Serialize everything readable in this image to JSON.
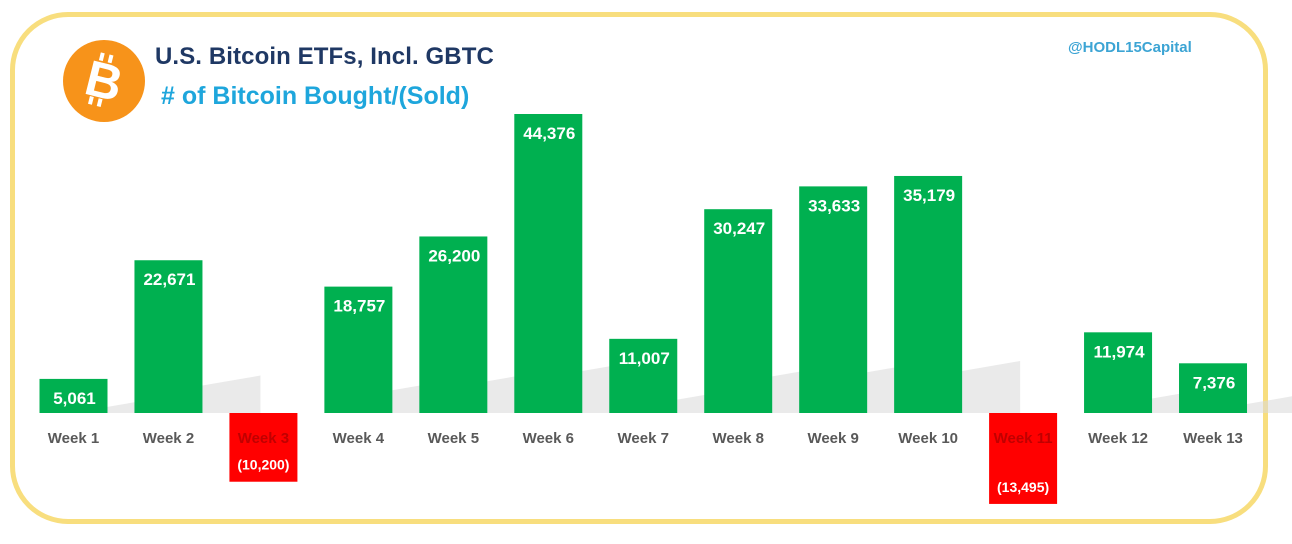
{
  "header": {
    "title": "U.S. Bitcoin ETFs, Incl. GBTC",
    "subtitle": "# of Bitcoin Bought/(Sold)",
    "handle": "@HODL15Capital"
  },
  "logo": {
    "icon": "bitcoin-logo-icon",
    "glyph": "B",
    "color": "#f7931a"
  },
  "colors": {
    "positive": "#00b050",
    "negative": "#ff0000",
    "frame": "#f8de7e",
    "title": "#1f3864",
    "subtitle": "#1ea6dc",
    "axis_label": "#595959"
  },
  "chart_data": {
    "type": "bar",
    "title": "U.S. Bitcoin ETFs, Incl. GBTC",
    "subtitle": "# of Bitcoin Bought/(Sold)",
    "categories": [
      "Week 1",
      "Week 2",
      "Week 3",
      "Week 4",
      "Week 5",
      "Week 6",
      "Week 7",
      "Week 8",
      "Week 9",
      "Week 10",
      "Week 11",
      "Week 12",
      "Week 13"
    ],
    "values": [
      5061,
      22671,
      -10200,
      18757,
      26200,
      44376,
      11007,
      30247,
      33633,
      35179,
      -13495,
      11974,
      7376
    ],
    "labels": [
      "5,061",
      "22,671",
      "(10,200)",
      "18,757",
      "26,200",
      "44,376",
      "11,007",
      "30,247",
      "33,633",
      "35,179",
      "(13,495)",
      "11,974",
      "7,376"
    ],
    "xlabel": "",
    "ylabel": "",
    "ylim": [
      -14000,
      46000
    ],
    "grid": false,
    "legend": "none"
  }
}
